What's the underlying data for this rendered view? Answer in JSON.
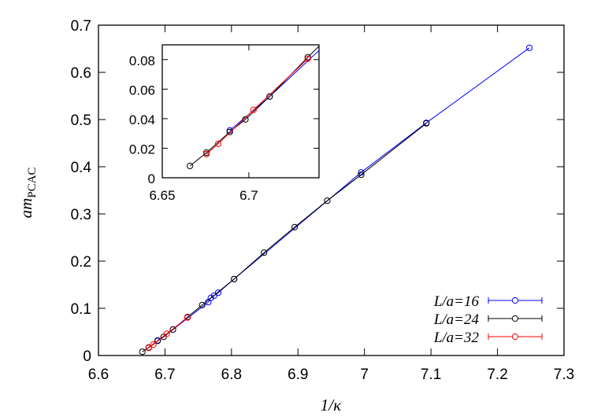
{
  "chart_data": {
    "type": "scatter",
    "xlabel": "1/κ",
    "ylabel_main": "am",
    "ylabel_sub": "PCAC",
    "xlim": [
      6.6,
      7.3
    ],
    "ylim": [
      0,
      0.7
    ],
    "xticks": [
      "6.6",
      "6.7",
      "6.8",
      "6.9",
      "7",
      "7.1",
      "7.2",
      "7.3"
    ],
    "yticks": [
      "0",
      "0.1",
      "0.2",
      "0.3",
      "0.4",
      "0.5",
      "0.6",
      "0.7"
    ],
    "grid": false,
    "legend_position": "bottom-right",
    "series": [
      {
        "name": "L/a=16",
        "color": "#0000ff",
        "x": [
          6.689,
          6.712,
          6.765,
          6.769,
          6.774,
          6.78,
          6.804,
          6.995,
          7.093,
          7.248
        ],
        "y": [
          0.032,
          0.055,
          0.113,
          0.122,
          0.127,
          0.133,
          0.162,
          0.388,
          0.493,
          0.652
        ]
      },
      {
        "name": "L/a=24",
        "color": "#000000",
        "x": [
          6.666,
          6.6755,
          6.689,
          6.698,
          6.712,
          6.734,
          6.756,
          6.804,
          6.849,
          6.895,
          6.944,
          6.995,
          7.093
        ],
        "y": [
          0.008,
          0.017,
          0.031,
          0.0395,
          0.055,
          0.0816,
          0.107,
          0.162,
          0.218,
          0.272,
          0.328,
          0.383,
          0.492
        ]
      },
      {
        "name": "L/a=32",
        "color": "#ff0000",
        "x": [
          6.6755,
          6.6823,
          6.7027,
          6.734
        ],
        "y": [
          0.016,
          0.023,
          0.046,
          0.0805
        ]
      }
    ],
    "inset": {
      "xlim": [
        6.65,
        6.7405
      ],
      "ylim": [
        0,
        0.09
      ],
      "xticks": [
        "6.65",
        "6.7"
      ],
      "yticks": [
        "0",
        "0.02",
        "0.04",
        "0.06",
        "0.08"
      ]
    }
  }
}
